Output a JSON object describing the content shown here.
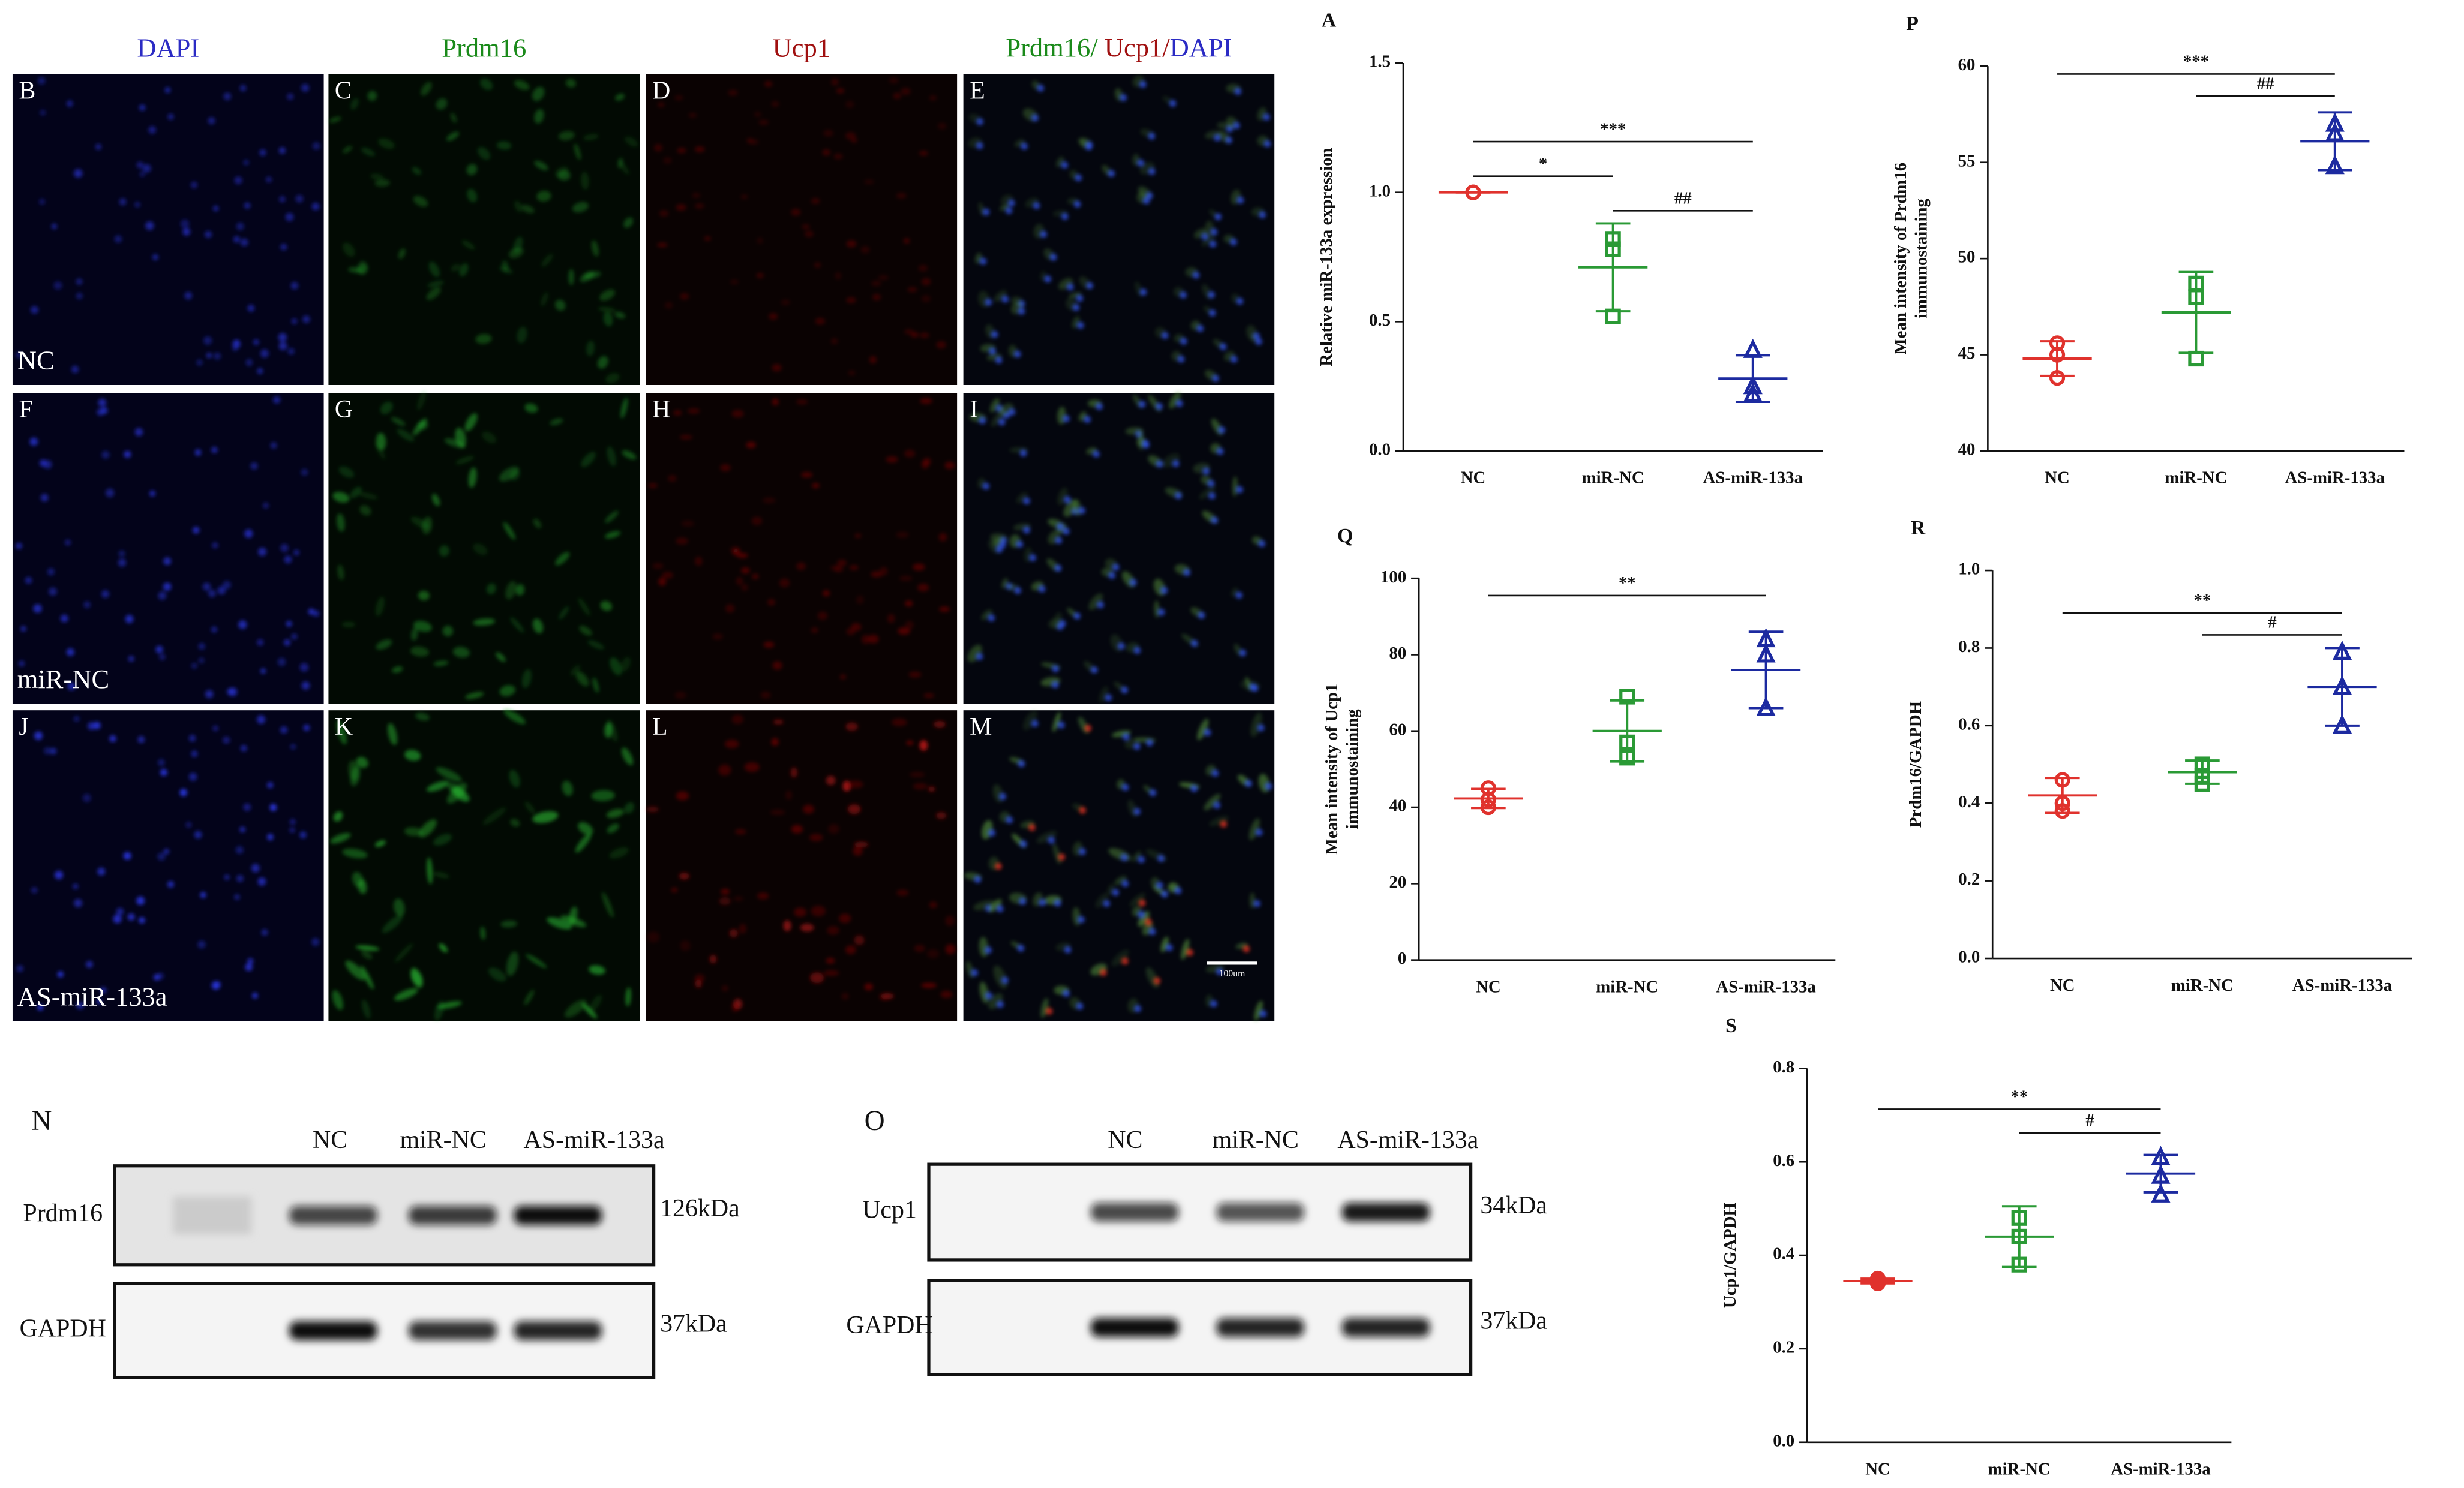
{
  "chart_data": [
    {
      "type": "dot",
      "panel": "A",
      "ylabel": [
        "Relative miR-133a expression"
      ],
      "categories": [
        "NC",
        "miR-NC",
        "AS-miR-133a"
      ],
      "colors": [
        "#e0322d",
        "#2a9a35",
        "#1c2aa0"
      ],
      "markers": [
        "circle",
        "square",
        "triangle"
      ],
      "points": [
        [
          1,
          1,
          1
        ],
        [
          0.82,
          0.78,
          0.52
        ],
        [
          0.39,
          0.25,
          0.22
        ]
      ],
      "means": [
        1,
        0.71,
        0.28
      ],
      "sd": [
        0,
        0.17,
        0.09
      ],
      "ylim": [
        0,
        1.5
      ],
      "yticks": [
        {
          "value": 0,
          "label": "0.0"
        },
        0.5,
        {
          "value": 1,
          "label": "1.0"
        },
        1.5
      ],
      "annotations": [
        {
          "label": "***",
          "from": 0,
          "to": 2
        },
        {
          "label": "*",
          "from": 0,
          "to": 1
        },
        {
          "label": "##",
          "from": 1,
          "to": 2
        }
      ]
    },
    {
      "type": "dot",
      "panel": "P",
      "ylabel": [
        "Mean intensity of Prdm16",
        "immunostaining"
      ],
      "categories": [
        "NC",
        "miR-NC",
        "AS-miR-133a"
      ],
      "colors": [
        "#e0322d",
        "#2a9a35",
        "#1c2aa0"
      ],
      "markers": [
        "circle",
        "square",
        "triangle"
      ],
      "points": [
        [
          45.6,
          43.8,
          45.0
        ],
        [
          48.7,
          48.0,
          44.8
        ],
        [
          57.0,
          56.5,
          54.8
        ]
      ],
      "means": [
        44.8,
        47.2,
        56.1
      ],
      "sd": [
        0.9,
        2.1,
        1.5
      ],
      "ylim": [
        40,
        60
      ],
      "yticks": [
        40,
        45,
        50,
        55,
        60
      ],
      "annotations": [
        {
          "label": "***",
          "from": 0,
          "to": 2
        },
        {
          "label": "##",
          "from": 1,
          "to": 2
        }
      ]
    },
    {
      "type": "dot",
      "panel": "Q",
      "ylabel": [
        "Mean intensity of Ucp1",
        "immunostaining"
      ],
      "categories": [
        "NC",
        "miR-NC",
        "AS-miR-133a"
      ],
      "colors": [
        "#e0322d",
        "#2a9a35",
        "#1c2aa0"
      ],
      "markers": [
        "circle",
        "square",
        "triangle"
      ],
      "points": [
        [
          45,
          42,
          40
        ],
        [
          69,
          57,
          53
        ],
        [
          84,
          80,
          66
        ]
      ],
      "means": [
        42.3,
        60,
        76
      ],
      "sd": [
        2.5,
        8,
        10
      ],
      "ylim": [
        0,
        100
      ],
      "yticks": [
        0,
        20,
        40,
        60,
        80,
        100
      ],
      "annotations": [
        {
          "label": "**",
          "from": 0,
          "to": 2
        }
      ]
    },
    {
      "type": "dot",
      "panel": "R",
      "ylabel": [
        "Prdm16/GAPDH"
      ],
      "categories": [
        "NC",
        "miR-NC",
        "AS-miR-133a"
      ],
      "colors": [
        "#e0322d",
        "#2a9a35",
        "#1c2aa0"
      ],
      "markers": [
        "circle",
        "square",
        "triangle"
      ],
      "points": [
        [
          0.46,
          0.4,
          0.38
        ],
        [
          0.5,
          0.47,
          0.45
        ],
        [
          0.79,
          0.7,
          0.6
        ]
      ],
      "means": [
        0.42,
        0.48,
        0.7
      ],
      "sd": [
        0.045,
        0.03,
        0.1
      ],
      "ylim": [
        0,
        1
      ],
      "yticks": [
        {
          "value": 0,
          "label": "0.0"
        },
        0.2,
        0.4,
        0.6,
        0.8,
        {
          "value": 1,
          "label": "1.0"
        }
      ],
      "annotations": [
        {
          "label": "**",
          "from": 0,
          "to": 2
        },
        {
          "label": "#",
          "from": 1,
          "to": 2
        }
      ]
    },
    {
      "type": "dot",
      "panel": "S",
      "ylabel": [
        "Ucp1/GAPDH"
      ],
      "categories": [
        "NC",
        "miR-NC",
        "AS-miR-133a"
      ],
      "colors": [
        "#e0322d",
        "#2a9a35",
        "#1c2aa0"
      ],
      "markers": [
        "circle",
        "square",
        "triangle"
      ],
      "points": [
        [
          0.35,
          0.345,
          0.34
        ],
        [
          0.48,
          0.44,
          0.38
        ],
        [
          0.61,
          0.57,
          0.53
        ]
      ],
      "means": [
        0.345,
        0.44,
        0.575
      ],
      "sd": [
        0.005,
        0.065,
        0.04
      ],
      "ylim": [
        0,
        0.8
      ],
      "yticks": [
        {
          "value": 0,
          "label": "0.0"
        },
        0.2,
        0.4,
        0.6,
        0.8
      ],
      "annotations": [
        {
          "label": "**",
          "from": 0,
          "to": 2
        },
        {
          "label": "#",
          "from": 1,
          "to": 2
        }
      ]
    }
  ],
  "microscopy": {
    "columns": [
      "DAPI",
      "Prdm16",
      "Ucp1"
    ],
    "merge": [
      "Prdm16/",
      " Ucp1/",
      "DAPI"
    ],
    "panels": [
      [
        "B",
        "C",
        "D",
        "E"
      ],
      [
        "F",
        "G",
        "H",
        "I"
      ],
      [
        "J",
        "K",
        "L",
        "M"
      ]
    ],
    "rows": [
      "NC",
      "miR-NC",
      "AS-miR-133a"
    ],
    "scale_bar": "100um"
  },
  "blots": [
    {
      "panel": "N",
      "lanes": [
        "NC",
        "miR-NC",
        "AS-miR-133a"
      ],
      "rows": [
        {
          "label": "Prdm16",
          "size": "126kDa"
        },
        {
          "label": "GAPDH",
          "size": "37kDa"
        }
      ]
    },
    {
      "panel": "O",
      "lanes": [
        "NC",
        "miR-NC",
        "AS-miR-133a"
      ],
      "rows": [
        {
          "label": "Ucp1",
          "size": "34kDa"
        },
        {
          "label": "GAPDH",
          "size": "37kDa"
        }
      ]
    }
  ]
}
